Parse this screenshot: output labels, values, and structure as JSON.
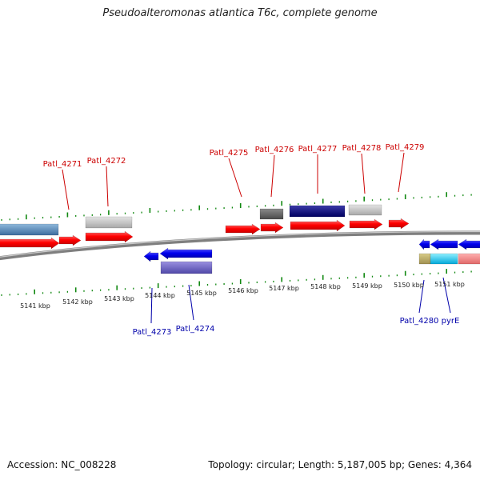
{
  "header": {
    "title": "Pseudoalteromonas atlantica T6c, complete genome"
  },
  "footer": {
    "accession": "Accession: NC_008228",
    "summary": "Topology: circular; Length: 5,187,005 bp; Genes: 4,364"
  },
  "colors": {
    "forward_label": "#cc0000",
    "reverse_label": "#0000aa",
    "tick": "#118811",
    "backbone": "#808080"
  },
  "scale_labels": [
    "5141 kbp",
    "5142 kbp",
    "5143 kbp",
    "5144 kbp",
    "5145 kbp",
    "5146 kbp",
    "5147 kbp",
    "5148 kbp",
    "5149 kbp",
    "5150 kbp",
    "5151 kbp"
  ],
  "upper_genes": [
    {
      "label": "Patl_4271",
      "strand": "forward"
    },
    {
      "label": "Patl_4272",
      "strand": "forward"
    },
    {
      "label": "Patl_4275",
      "strand": "forward"
    },
    {
      "label": "Patl_4276",
      "strand": "forward"
    },
    {
      "label": "Patl_4277",
      "strand": "forward"
    },
    {
      "label": "Patl_4278",
      "strand": "forward"
    },
    {
      "label": "Patl_4279",
      "strand": "forward"
    }
  ],
  "lower_genes": [
    {
      "label": "Patl_4273",
      "strand": "reverse"
    },
    {
      "label": "Patl_4274",
      "strand": "reverse"
    },
    {
      "label": "Patl_4280",
      "strand": "reverse"
    },
    {
      "label": "pyrE",
      "strand": "reverse"
    }
  ]
}
